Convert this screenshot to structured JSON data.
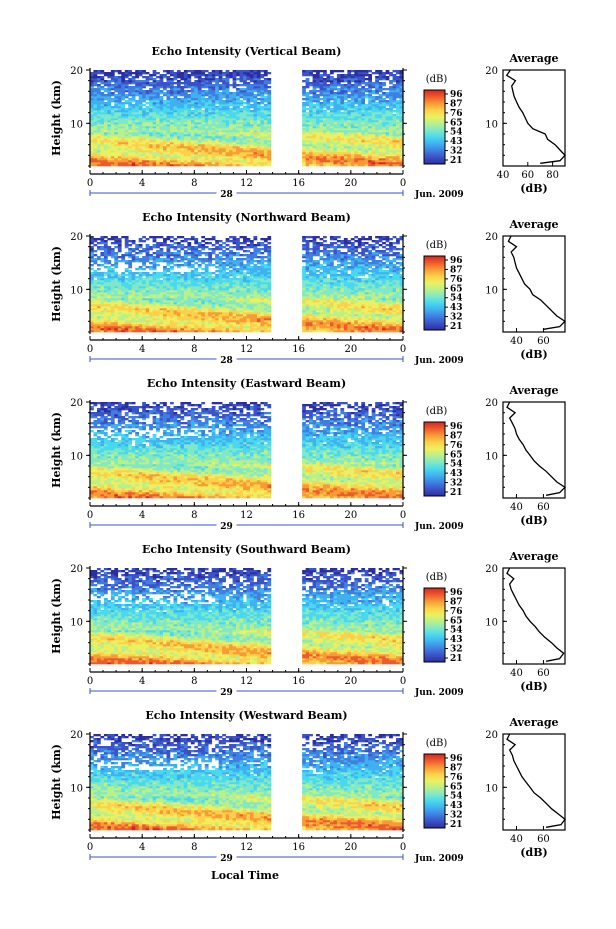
{
  "colors": {
    "colormap": [
      "#2b2f9e",
      "#3b52c8",
      "#3f7fe0",
      "#3fb0f0",
      "#48d8f0",
      "#7fe8c8",
      "#b8f08c",
      "#ecf060",
      "#fcd048",
      "#f89a36",
      "#ee5a2c",
      "#d4281e"
    ],
    "line": "#000000",
    "background": "#ffffff"
  },
  "figure": {
    "xlabel_bottom": "Local Time"
  },
  "chart_data": [
    {
      "type": "heatmap",
      "title": "Echo Intensity (Vertical Beam)",
      "ylabel": "Height (km)",
      "ylim": [
        2,
        20
      ],
      "yticks": [
        "20",
        "10"
      ],
      "ytick_values": [
        20,
        10
      ],
      "xlim": [
        0,
        24
      ],
      "xticks": [
        "0",
        "4",
        "8",
        "12",
        "16",
        "20",
        "0"
      ],
      "xtick_values": [
        0,
        4,
        8,
        12,
        16,
        20,
        24
      ],
      "data_gap": [
        14,
        16.3
      ],
      "date_day": "28",
      "date_month": "Jun. 2009",
      "colorbar_unit": "(dB)",
      "colorbar_ticks": [
        "96",
        "87",
        "76",
        "65",
        "54",
        "43",
        "32",
        "21"
      ],
      "profile": {
        "title": "Average",
        "xlabel": "(dB)",
        "xticks": [
          "40",
          "60",
          "80"
        ],
        "xtick_values": [
          40,
          60,
          80
        ],
        "xlim": [
          40,
          90
        ],
        "yticks": [
          "20",
          "10"
        ],
        "heights": [
          2.5,
          3,
          4,
          5,
          6,
          7,
          8,
          9,
          10,
          11,
          12,
          13,
          14,
          15,
          16,
          17,
          18,
          19,
          20
        ],
        "values": [
          70,
          86,
          90,
          86,
          82,
          76,
          74,
          64,
          60,
          58,
          56,
          53,
          51,
          49,
          48,
          47,
          50,
          43,
          46
        ]
      }
    },
    {
      "type": "heatmap",
      "title": "Echo Intensity (Northward Beam)",
      "ylabel": "Height (km)",
      "ylim": [
        2,
        20
      ],
      "yticks": [
        "20",
        "10"
      ],
      "ytick_values": [
        20,
        10
      ],
      "xlim": [
        0,
        24
      ],
      "xticks": [
        "0",
        "4",
        "8",
        "12",
        "16",
        "20",
        "0"
      ],
      "xtick_values": [
        0,
        4,
        8,
        12,
        16,
        20,
        24
      ],
      "data_gap": [
        14,
        16.3
      ],
      "date_day": "28",
      "date_month": "Jun. 2009",
      "colorbar_unit": "(dB)",
      "colorbar_ticks": [
        "96",
        "87",
        "76",
        "65",
        "54",
        "43",
        "32",
        "21"
      ],
      "profile": {
        "title": "Average",
        "xlabel": "(dB)",
        "xticks": [
          "40",
          "60"
        ],
        "xtick_values": [
          40,
          60
        ],
        "xlim": [
          30,
          76
        ],
        "yticks": [
          "20",
          "10"
        ],
        "heights": [
          2.5,
          3,
          4,
          5,
          6,
          7,
          8,
          9,
          10,
          11,
          12,
          13,
          14,
          15,
          16,
          17,
          18,
          19,
          20
        ],
        "values": [
          60,
          72,
          76,
          70,
          66,
          62,
          58,
          52,
          50,
          46,
          44,
          42,
          40,
          39,
          38,
          36,
          40,
          34,
          36
        ]
      }
    },
    {
      "type": "heatmap",
      "title": "Echo Intensity (Eastward Beam)",
      "ylabel": "Height (km)",
      "ylim": [
        2,
        20
      ],
      "yticks": [
        "20",
        "10"
      ],
      "ytick_values": [
        20,
        10
      ],
      "xlim": [
        0,
        24
      ],
      "xticks": [
        "0",
        "4",
        "8",
        "12",
        "16",
        "20",
        "0"
      ],
      "xtick_values": [
        0,
        4,
        8,
        12,
        16,
        20,
        24
      ],
      "data_gap": [
        14,
        16.3
      ],
      "date_day": "29",
      "date_month": "Jun. 2009",
      "colorbar_unit": "(dB)",
      "colorbar_ticks": [
        "96",
        "87",
        "76",
        "65",
        "54",
        "43",
        "32",
        "21"
      ],
      "profile": {
        "title": "Average",
        "xlabel": "(dB)",
        "xticks": [
          "40",
          "60"
        ],
        "xtick_values": [
          40,
          60
        ],
        "xlim": [
          30,
          76
        ],
        "yticks": [
          "20",
          "10"
        ],
        "heights": [
          2.5,
          3,
          4,
          5,
          6,
          7,
          8,
          9,
          10,
          11,
          12,
          13,
          14,
          15,
          16,
          17,
          18,
          19,
          20
        ],
        "values": [
          62,
          72,
          76,
          70,
          66,
          62,
          57,
          53,
          50,
          47,
          45,
          42,
          40,
          39,
          37,
          35,
          39,
          33,
          35
        ]
      }
    },
    {
      "type": "heatmap",
      "title": "Echo Intensity (Southward Beam)",
      "ylabel": "Height (km)",
      "ylim": [
        2,
        20
      ],
      "yticks": [
        "20",
        "10"
      ],
      "ytick_values": [
        20,
        10
      ],
      "xlim": [
        0,
        24
      ],
      "xticks": [
        "0",
        "4",
        "8",
        "12",
        "16",
        "20",
        "0"
      ],
      "xtick_values": [
        0,
        4,
        8,
        12,
        16,
        20,
        24
      ],
      "data_gap": [
        14,
        16.3
      ],
      "date_day": "29",
      "date_month": "Jun. 2009",
      "colorbar_unit": "(dB)",
      "colorbar_ticks": [
        "96",
        "87",
        "76",
        "65",
        "54",
        "43",
        "32",
        "21"
      ],
      "profile": {
        "title": "Average",
        "xlabel": "(dB)",
        "xticks": [
          "40",
          "60"
        ],
        "xtick_values": [
          40,
          60
        ],
        "xlim": [
          30,
          76
        ],
        "yticks": [
          "20",
          "10"
        ],
        "heights": [
          2.5,
          3,
          4,
          5,
          6,
          7,
          8,
          9,
          10,
          11,
          12,
          13,
          14,
          15,
          16,
          17,
          18,
          19,
          20
        ],
        "values": [
          62,
          72,
          75,
          70,
          66,
          61,
          57,
          54,
          50,
          47,
          45,
          42,
          40,
          38,
          36,
          35,
          38,
          33,
          35
        ]
      }
    },
    {
      "type": "heatmap",
      "title": "Echo Intensity (Westward Beam)",
      "ylabel": "Height (km)",
      "ylim": [
        2,
        20
      ],
      "yticks": [
        "20",
        "10"
      ],
      "ytick_values": [
        20,
        10
      ],
      "xlim": [
        0,
        24
      ],
      "xticks": [
        "0",
        "4",
        "8",
        "12",
        "16",
        "20",
        "0"
      ],
      "xtick_values": [
        0,
        4,
        8,
        12,
        16,
        20,
        24
      ],
      "data_gap": [
        14,
        16.3
      ],
      "date_day": "29",
      "date_month": "Jun. 2009",
      "colorbar_unit": "(dB)",
      "colorbar_ticks": [
        "96",
        "87",
        "76",
        "65",
        "54",
        "43",
        "32",
        "21"
      ],
      "profile": {
        "title": "Average",
        "xlabel": "(dB)",
        "xticks": [
          "40",
          "60"
        ],
        "xtick_values": [
          40,
          60
        ],
        "xlim": [
          30,
          76
        ],
        "yticks": [
          "20",
          "10"
        ],
        "heights": [
          2.5,
          3,
          4,
          5,
          6,
          7,
          8,
          9,
          10,
          11,
          12,
          13,
          14,
          15,
          16,
          17,
          18,
          19,
          20
        ],
        "values": [
          62,
          73,
          76,
          71,
          66,
          62,
          58,
          53,
          50,
          47,
          44,
          42,
          40,
          38,
          37,
          35,
          39,
          33,
          35
        ]
      }
    }
  ]
}
